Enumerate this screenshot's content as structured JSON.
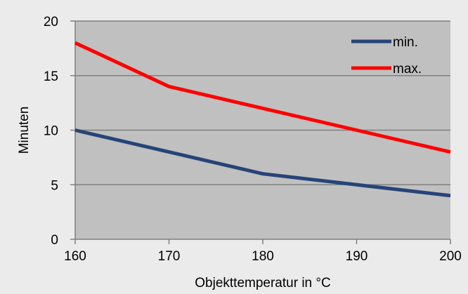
{
  "colors": {
    "page_background": "#ebebeb",
    "plot_background": "#c0c0c0",
    "gridline": "#7f7f7f",
    "axis": "#7f7f7f",
    "min_series": "#264478",
    "max_series": "#ff0000"
  },
  "chart_data": {
    "type": "line",
    "title": "",
    "xlabel": "Objekttemperatur in °C",
    "ylabel": "Minuten",
    "x": [
      160,
      170,
      180,
      190,
      200
    ],
    "xlim": [
      160,
      200
    ],
    "ylim": [
      0,
      20
    ],
    "xticks": [
      160,
      170,
      180,
      190,
      200
    ],
    "yticks": [
      0,
      5,
      10,
      15,
      20
    ],
    "grid": "horizontal",
    "legend_position": "top-right",
    "series": [
      {
        "name": "min.",
        "color": "#264478",
        "values": [
          10,
          8,
          6,
          5,
          4
        ]
      },
      {
        "name": "max.",
        "color": "#ff0000",
        "values": [
          18,
          14,
          12,
          10,
          8
        ]
      }
    ]
  }
}
